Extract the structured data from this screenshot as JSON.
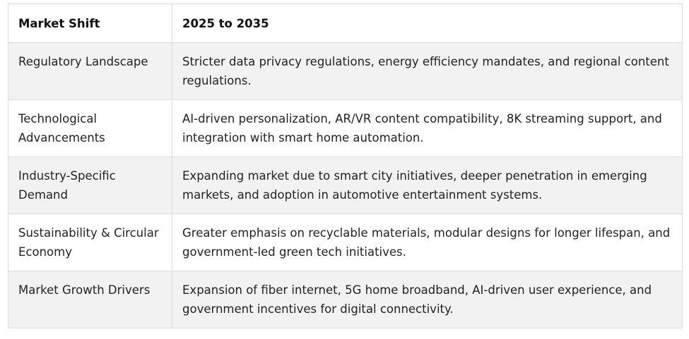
{
  "table": {
    "headers": [
      "Market Shift",
      "2025 to 2035"
    ],
    "rows": [
      {
        "shift": "Regulatory Landscape",
        "detail": "Stricter data privacy regulations, energy efficiency mandates, and regional content regulations."
      },
      {
        "shift": "Technological Advancements",
        "detail": "AI-driven personalization, AR/VR content compatibility, 8K streaming support, and integration with smart home automation."
      },
      {
        "shift": "Industry-Specific Demand",
        "detail": "Expanding market due to smart city initiatives, deeper penetration in emerging markets, and adoption in automotive entertainment systems."
      },
      {
        "shift": "Sustainability & Circular Economy",
        "detail": "Greater emphasis on recyclable materials, modular designs for longer lifespan, and government-led green tech initiatives."
      },
      {
        "shift": "Market Growth Drivers",
        "detail": "Expansion of fiber internet, 5G home broadband, AI-driven user experience, and government incentives for digital connectivity."
      }
    ]
  }
}
